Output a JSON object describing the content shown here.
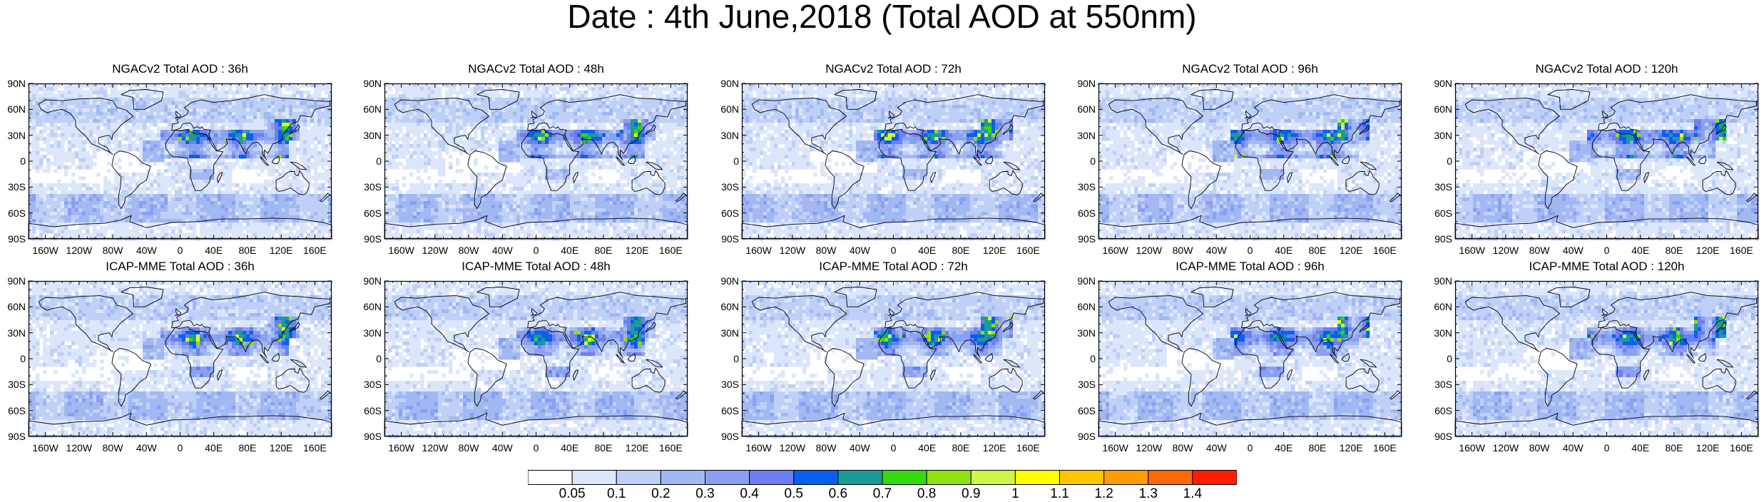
{
  "title": "Date : 4th June,2018 (Total AOD at 550nm)",
  "lat_ticks": [
    "90N",
    "60N",
    "30N",
    "0",
    "30S",
    "60S",
    "90S"
  ],
  "lon_ticks": [
    "160W",
    "120W",
    "80W",
    "40W",
    "0",
    "40E",
    "80E",
    "120E",
    "160E"
  ],
  "lon_tick_values": [
    -160,
    -120,
    -80,
    -40,
    0,
    40,
    80,
    120,
    160
  ],
  "rows": [
    {
      "model": "NGACv2",
      "panels": [
        {
          "title": "NGACv2 Total AOD : 36h"
        },
        {
          "title": "NGACv2 Total AOD : 48h"
        },
        {
          "title": "NGACv2 Total AOD : 72h"
        },
        {
          "title": "NGACv2 Total AOD : 96h"
        },
        {
          "title": "NGACv2 Total AOD : 120h"
        }
      ]
    },
    {
      "model": "ICAP-MME",
      "panels": [
        {
          "title": "ICAP-MME Total AOD : 36h"
        },
        {
          "title": "ICAP-MME Total AOD : 48h"
        },
        {
          "title": "ICAP-MME Total AOD : 72h"
        },
        {
          "title": "ICAP-MME Total AOD : 96h"
        },
        {
          "title": "ICAP-MME Total AOD : 120h"
        }
      ]
    }
  ],
  "colorbar": {
    "labels": [
      "0.05",
      "0.1",
      "0.2",
      "0.3",
      "0.4",
      "0.5",
      "0.6",
      "0.7",
      "0.8",
      "0.9",
      "1",
      "1.1",
      "1.2",
      "1.3",
      "1.4"
    ],
    "colors": [
      "#ffffff",
      "#dce6fb",
      "#bfd0f7",
      "#a2b8f3",
      "#8aa0f0",
      "#6f7ef0",
      "#0a5ff0",
      "#1b9a96",
      "#35d90f",
      "#8fe10d",
      "#cdf54a",
      "#ffff00",
      "#ffc600",
      "#ff9c00",
      "#ff6a00",
      "#ff1e00"
    ]
  }
}
